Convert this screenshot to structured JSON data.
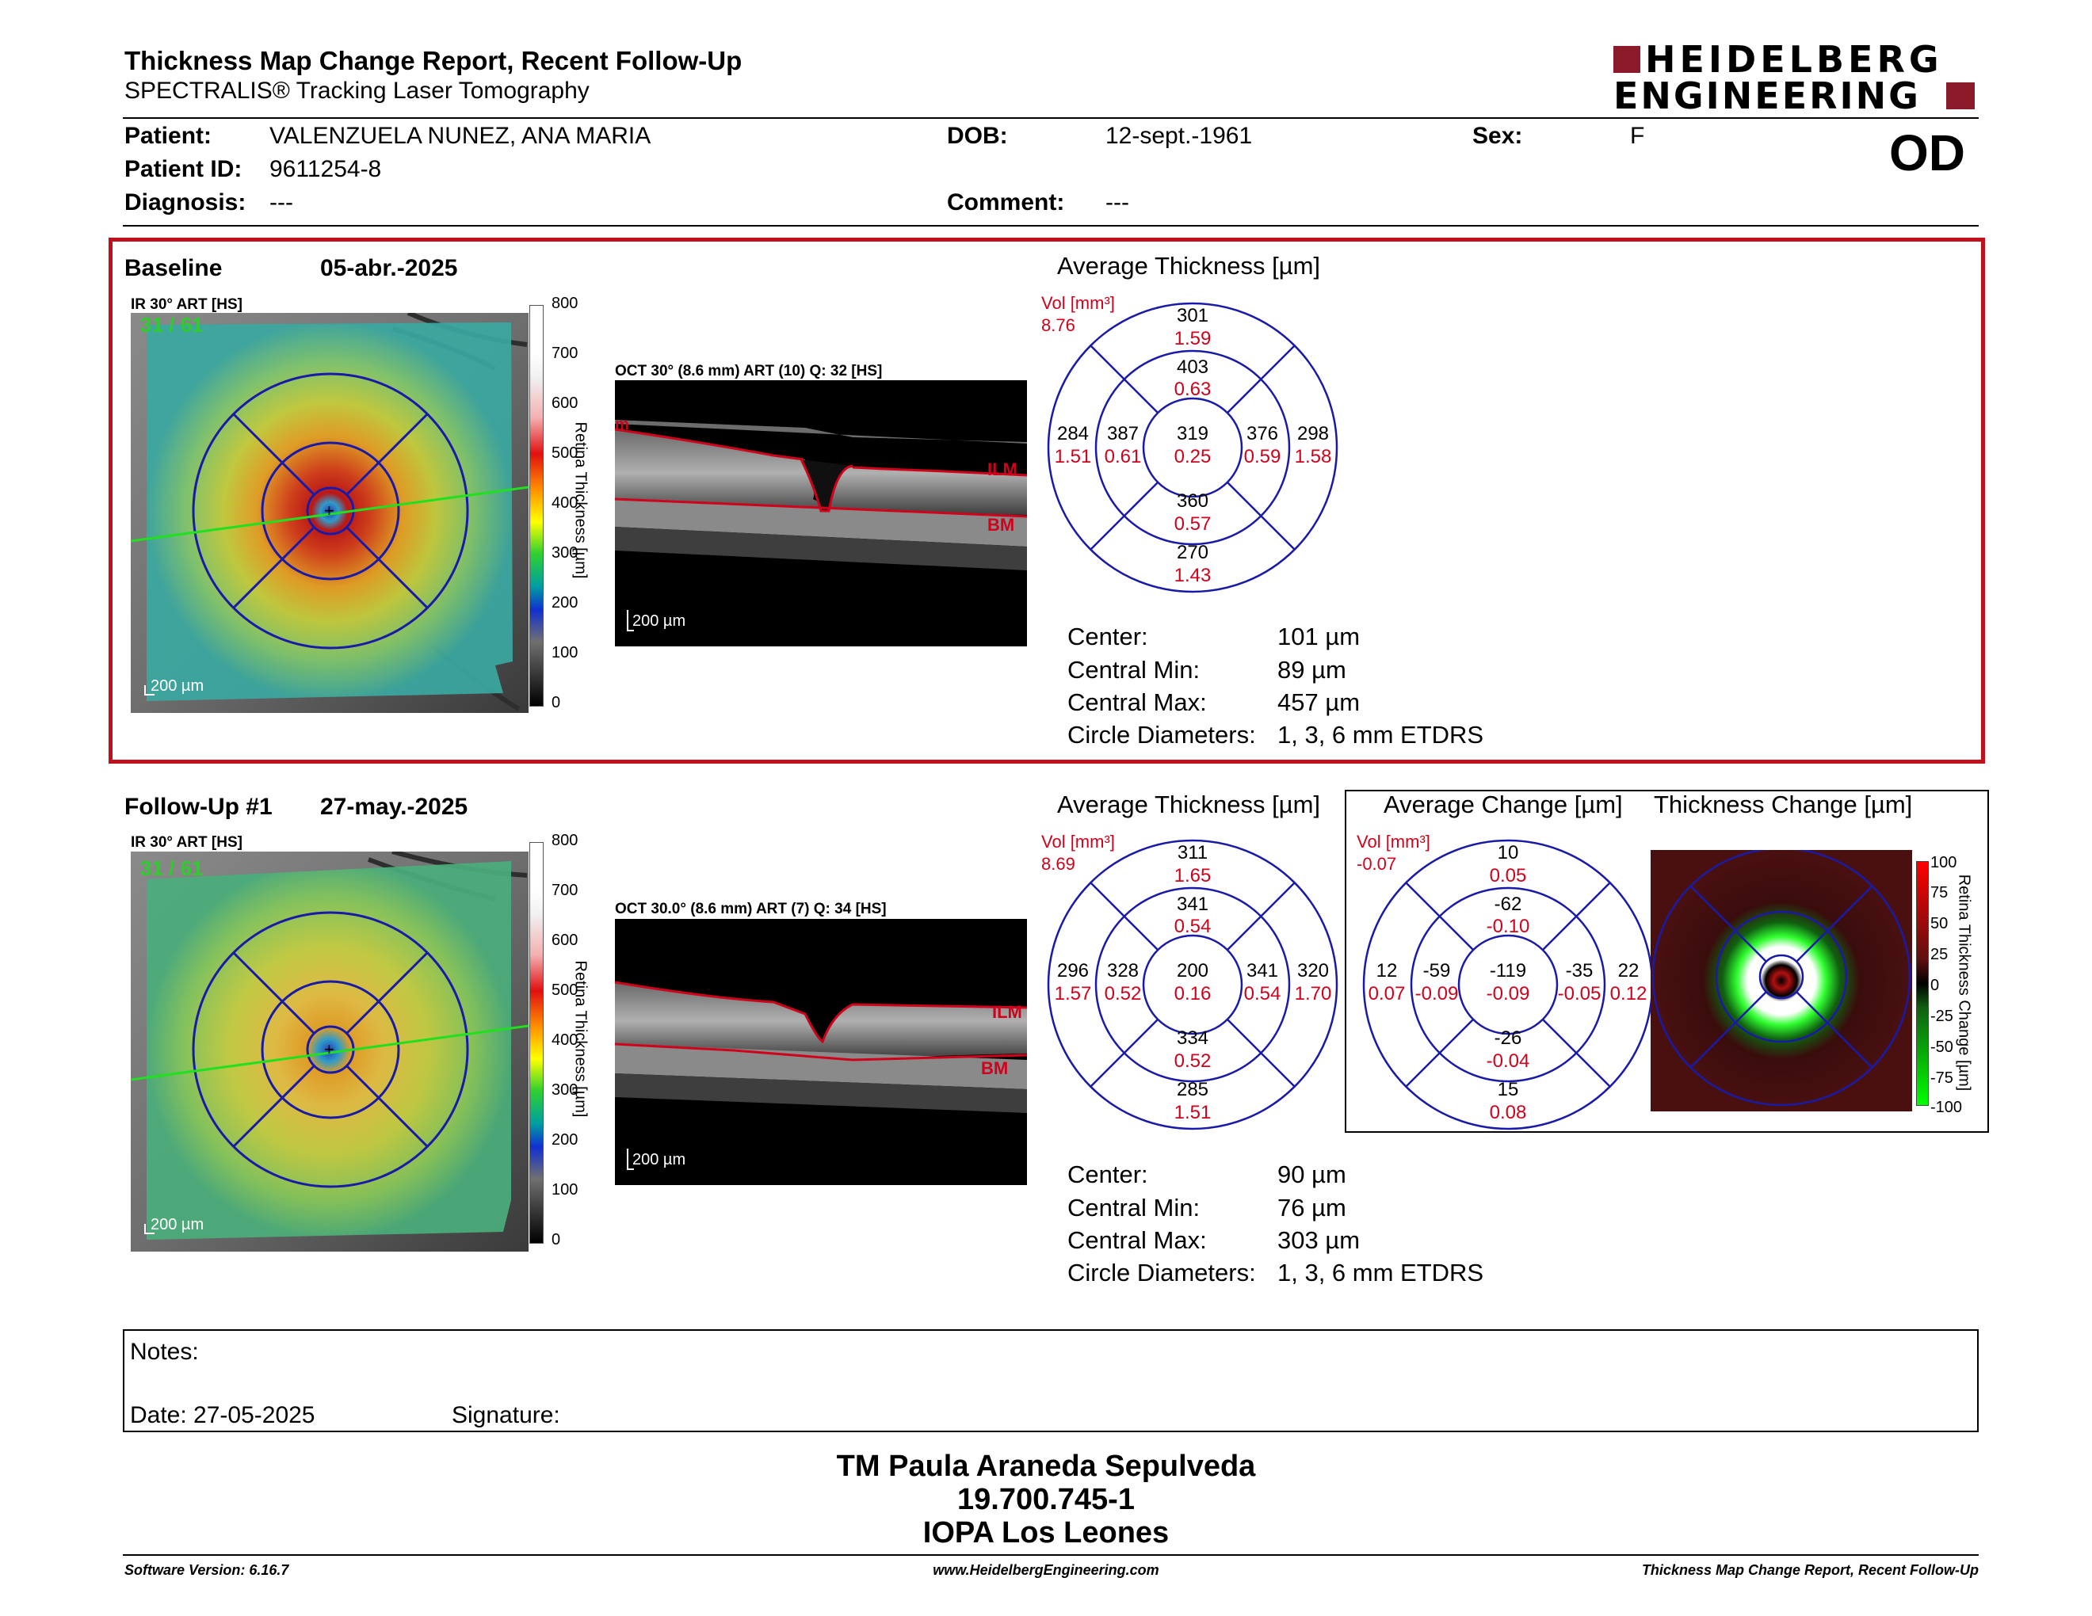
{
  "header": {
    "title": "Thickness Map Change Report, Recent Follow-Up",
    "subtitle": "SPECTRALIS® Tracking Laser Tomography",
    "logo_line1": "HEIDELBERG",
    "logo_line2": "ENGINEERING",
    "eye": "OD"
  },
  "patient": {
    "patient_label": "Patient:",
    "patient_value": "VALENZUELA NUNEZ, ANA MARIA",
    "dob_label": "DOB:",
    "dob_value": "12-sept.-1961",
    "sex_label": "Sex:",
    "sex_value": "F",
    "id_label": "Patient ID:",
    "id_value": "9611254-8",
    "diagnosis_label": "Diagnosis:",
    "diagnosis_value": "---",
    "comment_label": "Comment:",
    "comment_value": "---"
  },
  "baseline": {
    "label": "Baseline",
    "date": "05-abr.-2025",
    "ir_label": "IR 30° ART [HS]",
    "frames": "31 / 61",
    "ir_scale": "200 µm",
    "colorbar_title": "Retina Thickness [µm]",
    "colorbar_ticks": [
      "800",
      "700",
      "600",
      "500",
      "400",
      "300",
      "200",
      "100",
      "0"
    ],
    "oct_label": "OCT 30° (8.6 mm) ART (10) Q: 32 [HS]",
    "oct_scale": "200 µm",
    "oct_ilm": "ILM",
    "oct_bm": "BM",
    "oct_mark": "m",
    "avg_title": "Average Thickness [µm]",
    "vol_label": "Vol [mm³]",
    "vol_value": "8.76",
    "grid": {
      "outer_sup": {
        "t": "301",
        "v": "1.59"
      },
      "inner_sup": {
        "t": "403",
        "v": "0.63"
      },
      "outer_temp": {
        "t": "284",
        "v": "1.51"
      },
      "inner_temp": {
        "t": "387",
        "v": "0.61"
      },
      "center": {
        "t": "319",
        "v": "0.25"
      },
      "inner_nas": {
        "t": "376",
        "v": "0.59"
      },
      "outer_nas": {
        "t": "298",
        "v": "1.58"
      },
      "inner_inf": {
        "t": "360",
        "v": "0.57"
      },
      "outer_inf": {
        "t": "270",
        "v": "1.43"
      }
    },
    "stats": [
      {
        "label": "Center:",
        "value": "101 µm"
      },
      {
        "label": "Central Min:",
        "value": "89 µm"
      },
      {
        "label": "Central Max:",
        "value": "457 µm"
      },
      {
        "label": "Circle Diameters:",
        "value": "1, 3, 6 mm ETDRS"
      }
    ]
  },
  "followup": {
    "label": "Follow-Up #1",
    "date": "27-may.-2025",
    "ir_label": "IR 30° ART [HS]",
    "frames": "31 / 61",
    "ir_scale": "200 µm",
    "colorbar_title": "Retina Thickness [µm]",
    "colorbar_ticks": [
      "800",
      "700",
      "600",
      "500",
      "400",
      "300",
      "200",
      "100",
      "0"
    ],
    "oct_label": "OCT 30.0° (8.6 mm) ART (7) Q: 34 [HS]",
    "oct_scale": "200 µm",
    "oct_ilm": "ILM",
    "oct_bm": "BM",
    "avg_title": "Average Thickness [µm]",
    "vol_label": "Vol [mm³]",
    "vol_value": "8.69",
    "grid": {
      "outer_sup": {
        "t": "311",
        "v": "1.65"
      },
      "inner_sup": {
        "t": "341",
        "v": "0.54"
      },
      "outer_temp": {
        "t": "296",
        "v": "1.57"
      },
      "inner_temp": {
        "t": "328",
        "v": "0.52"
      },
      "center": {
        "t": "200",
        "v": "0.16"
      },
      "inner_nas": {
        "t": "341",
        "v": "0.54"
      },
      "outer_nas": {
        "t": "320",
        "v": "1.70"
      },
      "inner_inf": {
        "t": "334",
        "v": "0.52"
      },
      "outer_inf": {
        "t": "285",
        "v": "1.51"
      }
    },
    "change_title": "Average Change [µm]",
    "change_vol_label": "Vol [mm³]",
    "change_vol_value": "-0.07",
    "change_grid": {
      "outer_sup": {
        "t": "10",
        "v": "0.05"
      },
      "inner_sup": {
        "t": "-62",
        "v": "-0.10"
      },
      "outer_temp": {
        "t": "12",
        "v": "0.07"
      },
      "inner_temp": {
        "t": "-59",
        "v": "-0.09"
      },
      "center": {
        "t": "-119",
        "v": "-0.09"
      },
      "inner_nas": {
        "t": "-35",
        "v": "-0.05"
      },
      "outer_nas": {
        "t": "22",
        "v": "0.12"
      },
      "inner_inf": {
        "t": "-26",
        "v": "-0.04"
      },
      "outer_inf": {
        "t": "15",
        "v": "0.08"
      }
    },
    "thick_change_title": "Thickness Change [µm]",
    "change_colorbar_title": "Retina Thickness Change [µm]",
    "change_ticks": [
      "100",
      "75",
      "50",
      "25",
      "0",
      "-25",
      "-50",
      "-75",
      "-100"
    ],
    "stats": [
      {
        "label": "Center:",
        "value": "90 µm"
      },
      {
        "label": "Central Min:",
        "value": "76 µm"
      },
      {
        "label": "Central Max:",
        "value": "303 µm"
      },
      {
        "label": "Circle Diameters:",
        "value": "1, 3, 6 mm ETDRS"
      }
    ]
  },
  "notes": {
    "notes_label": "Notes:",
    "date_label": "Date: 27-05-2025",
    "signature_label": "Signature:"
  },
  "signature_block": {
    "name": "TM Paula Araneda Sepulveda",
    "rut": "19.700.745-1",
    "institution": "IOPA Los Leones"
  },
  "footer": {
    "software": "Software Version: 6.16.7",
    "website": "www.HeidelbergEngineering.com",
    "report": "Thickness Map Change Report, Recent Follow-Up"
  },
  "colors": {
    "frame_red": "#c0101b",
    "etdrs_blue": "#1a1aa8",
    "value_red": "#d0021b"
  }
}
